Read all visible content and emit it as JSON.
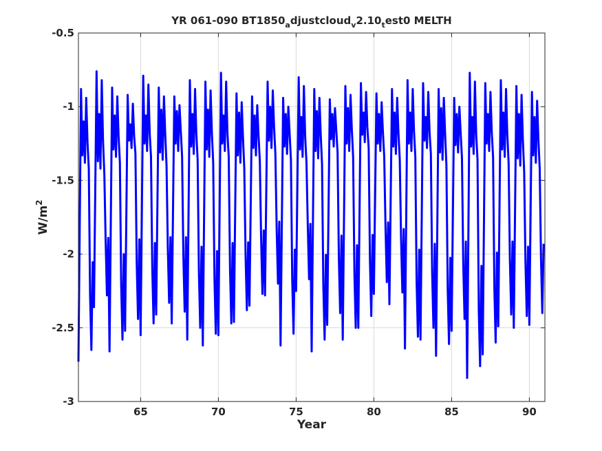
{
  "chart_data": {
    "type": "line",
    "title": {
      "parts": [
        {
          "text": "YR 061-090 BT1850",
          "sub": false
        },
        {
          "text": "a",
          "sub": true
        },
        {
          "text": "djustcloud",
          "sub": false
        },
        {
          "text": "v",
          "sub": true
        },
        {
          "text": "2.10",
          "sub": false
        },
        {
          "text": "t",
          "sub": true
        },
        {
          "text": "est0 MELTH",
          "sub": false
        }
      ]
    },
    "xlabel": "Year",
    "ylabel": "W/m",
    "ylabel_superscript": "2",
    "xlim": [
      61,
      91
    ],
    "ylim": [
      -3,
      -0.5
    ],
    "xticks": [
      65,
      70,
      75,
      80,
      85,
      90
    ],
    "xtick_labels": [
      "65",
      "70",
      "75",
      "80",
      "85",
      "90"
    ],
    "yticks": [
      -3,
      -2.5,
      -2,
      -1.5,
      -1,
      -0.5
    ],
    "ytick_labels": [
      "-3",
      "-2.5",
      "-2",
      "-1.5",
      "-1",
      "-0.5"
    ],
    "grid": true,
    "series": [
      {
        "color": "#0000ff",
        "annual_minima": [
          -2.73,
          -2.36,
          -2.66,
          -2.52,
          -2.55,
          -2.41,
          -2.47,
          -2.58,
          -2.62,
          -2.55,
          -2.46,
          -2.35,
          -2.28,
          -2.62,
          -2.25,
          -2.66,
          -2.48,
          -2.58,
          -2.5,
          -2.27,
          -2.34,
          -2.64,
          -2.58,
          -2.69,
          -2.52,
          -2.84,
          -2.68,
          -2.49,
          -2.5,
          -2.48
        ],
        "annual_maxima": [
          -0.88,
          -0.76,
          -0.87,
          -0.92,
          -0.79,
          -0.87,
          -0.93,
          -0.82,
          -0.83,
          -0.77,
          -0.91,
          -0.93,
          -0.83,
          -0.94,
          -0.8,
          -0.88,
          -0.95,
          -0.86,
          -0.84,
          -0.91,
          -0.88,
          -0.82,
          -0.84,
          -0.88,
          -0.94,
          -0.77,
          -0.84,
          -0.82,
          -0.86,
          -0.9
        ],
        "secondary_peaks": [
          -1.1,
          -1.05,
          -1.06,
          -1.12,
          -1.06,
          -1.02,
          -1.03,
          -1.05,
          -1.02,
          -1.06,
          -1.04,
          -1.06,
          -1.0,
          -1.05,
          -1.07,
          -1.03,
          -1.05,
          -1.01,
          -1.04,
          -1.05,
          -1.04,
          -1.04,
          -1.07,
          -1.01,
          -1.05,
          -1.07,
          -1.05,
          -1.04,
          -1.05,
          -1.07
        ],
        "secondary_troughs": [
          -1.38,
          -1.42,
          -1.34,
          -1.28,
          -1.3,
          -1.36,
          -1.3,
          -1.32,
          -1.34,
          -1.3,
          -1.38,
          -1.33,
          -1.28,
          -1.32,
          -1.34,
          -1.35,
          -1.27,
          -1.3,
          -1.24,
          -1.3,
          -1.32,
          -1.3,
          -1.28,
          -1.36,
          -1.31,
          -1.32,
          -1.3,
          -1.34,
          -1.4,
          -1.38
        ]
      }
    ]
  }
}
